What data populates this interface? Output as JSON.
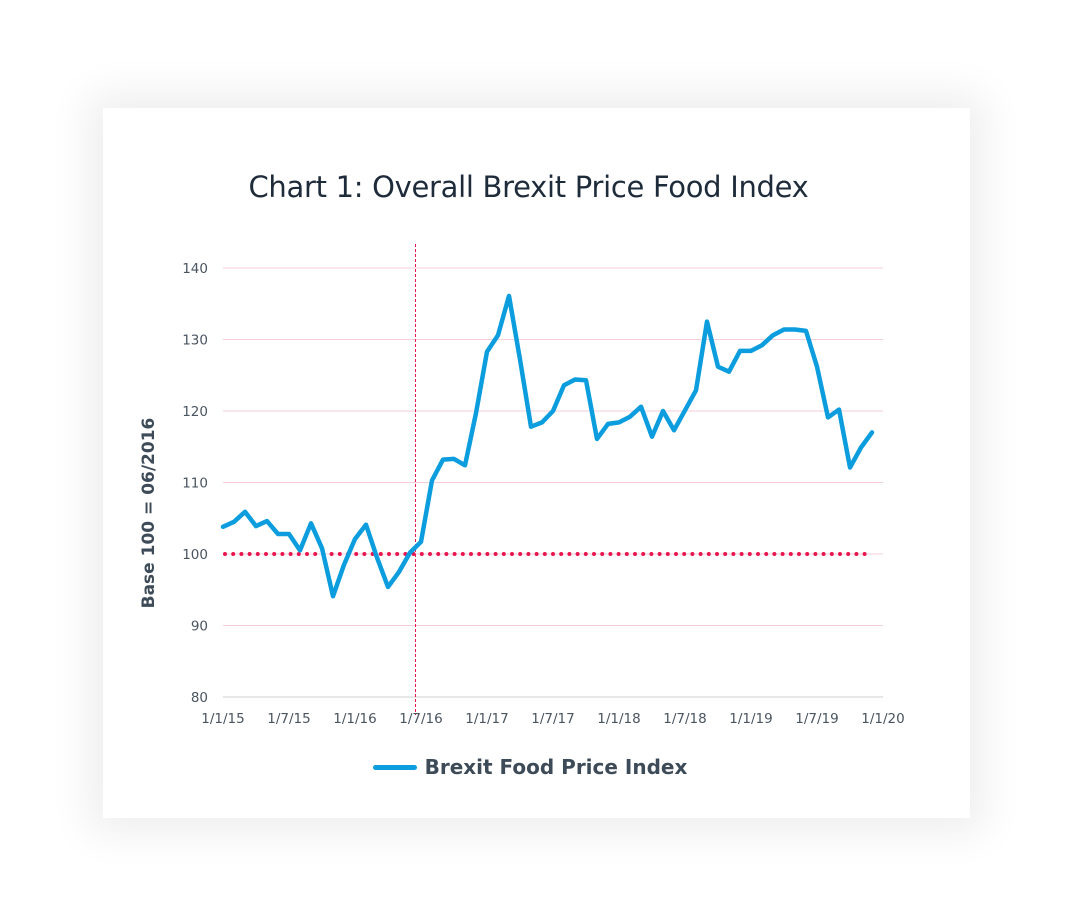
{
  "chart_data": {
    "type": "line",
    "title": "Chart 1: Overall Brexit Price Food Index",
    "xlabel": "",
    "ylabel": "Base 100 = 06/2016",
    "ylim": [
      80,
      140
    ],
    "yticks": [
      140,
      130,
      120,
      110,
      100,
      90,
      80
    ],
    "x_tick_labels": [
      "1/1/15",
      "1/7/15",
      "1/1/16",
      "1/7/16",
      "1/1/17",
      "1/7/17",
      "1/1/18",
      "1/7/18",
      "1/1/19",
      "1/7/19",
      "1/1/20"
    ],
    "x_range_months": [
      0,
      60
    ],
    "reference_line": {
      "value": 100,
      "style": "dotted",
      "color": "#e8154f"
    },
    "event_line": {
      "month": 17.5,
      "style": "dashed",
      "color": "#e8154f"
    },
    "grid": true,
    "legend_position": "bottom-center",
    "series": [
      {
        "name": "Brexit Food Price Index",
        "color": "#0b9ddd",
        "months": [
          0,
          1,
          2,
          3,
          4,
          5,
          6,
          7,
          8,
          9,
          10,
          11,
          12,
          13,
          14,
          15,
          16,
          17,
          18,
          19,
          20,
          21,
          22,
          23,
          24,
          25,
          26,
          27,
          28,
          29,
          30,
          31,
          32,
          33,
          34,
          35,
          36,
          37,
          38,
          39,
          40,
          41,
          42,
          43,
          44,
          45,
          46,
          47,
          48,
          49,
          50,
          51,
          52,
          53,
          54,
          55,
          56,
          57,
          58,
          59
        ],
        "values": [
          103.8,
          104.5,
          105.9,
          103.9,
          104.6,
          102.8,
          102.8,
          100.5,
          104.3,
          100.8,
          94.1,
          98.5,
          102.1,
          104.1,
          99.5,
          95.4,
          97.5,
          100.2,
          101.7,
          110.3,
          113.2,
          113.3,
          112.4,
          119.7,
          128.3,
          130.6,
          136.1,
          127.2,
          117.8,
          118.4,
          120.0,
          123.6,
          124.4,
          124.3,
          116.1,
          118.2,
          118.4,
          119.2,
          120.6,
          116.4,
          120.0,
          117.3,
          120.1,
          122.9,
          132.5,
          126.2,
          125.5,
          128.4,
          128.4,
          129.2,
          130.6,
          131.4,
          131.4,
          131.2,
          126.2,
          119.1,
          120.2,
          112.1,
          114.9,
          117.0
        ]
      }
    ]
  }
}
